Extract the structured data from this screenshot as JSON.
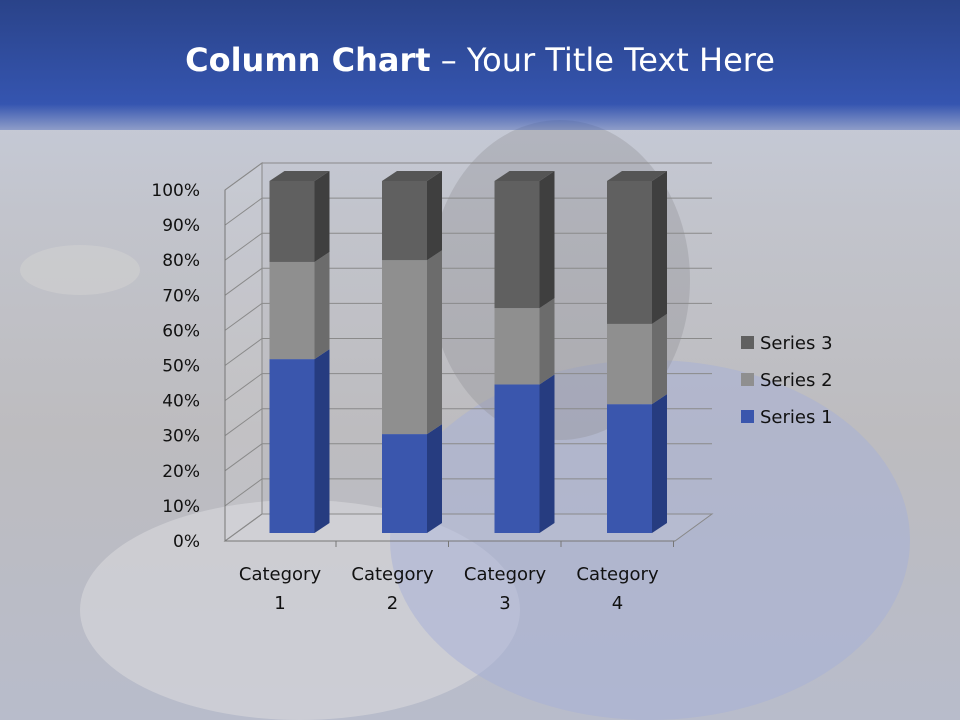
{
  "slide": {
    "title_bold": "Column Chart",
    "title_rest": " – Your Title Text Here"
  },
  "chart_data": {
    "type": "bar",
    "stacked": "percent",
    "three_d": true,
    "categories": [
      "Category 1",
      "Category 2",
      "Category 3",
      "Category 4"
    ],
    "category_lines": [
      [
        "Category",
        "1"
      ],
      [
        "Category",
        "2"
      ],
      [
        "Category",
        "3"
      ],
      [
        "Category",
        "4"
      ]
    ],
    "series": [
      {
        "name": "Series 1",
        "values": [
          49.4,
          28.1,
          42.2,
          36.6
        ],
        "color": "#3a56ad"
      },
      {
        "name": "Series 2",
        "values": [
          27.6,
          49.4,
          21.7,
          22.8
        ],
        "color": "#8f8f8f"
      },
      {
        "name": "Series 3",
        "values": [
          23.0,
          22.5,
          36.1,
          40.6
        ],
        "color": "#606060"
      }
    ],
    "ylim": [
      0,
      100
    ],
    "yticks": [
      "0%",
      "10%",
      "20%",
      "30%",
      "40%",
      "50%",
      "60%",
      "70%",
      "80%",
      "90%",
      "100%"
    ],
    "grid": true,
    "legend": "right"
  }
}
